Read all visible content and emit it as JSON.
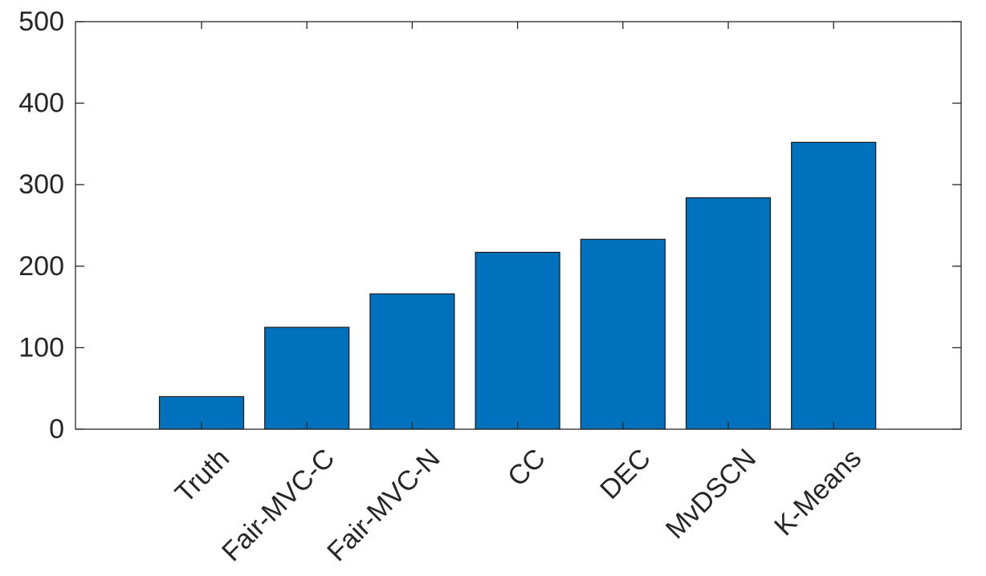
{
  "chart_data": {
    "type": "bar",
    "title": "",
    "xlabel": "",
    "ylabel": "",
    "categories": [
      "Truth",
      "Fair-MVC-C",
      "Fair-MVC-N",
      "CC",
      "DEC",
      "MvDSCN",
      "K-Means"
    ],
    "values": [
      40,
      125,
      166,
      217,
      233,
      284,
      352
    ],
    "ylim": [
      0,
      500
    ],
    "yticks": [
      "0",
      "100",
      "200",
      "300",
      "400",
      "500"
    ],
    "bar_color": "#0072BD",
    "grid": false,
    "legend": "none"
  }
}
